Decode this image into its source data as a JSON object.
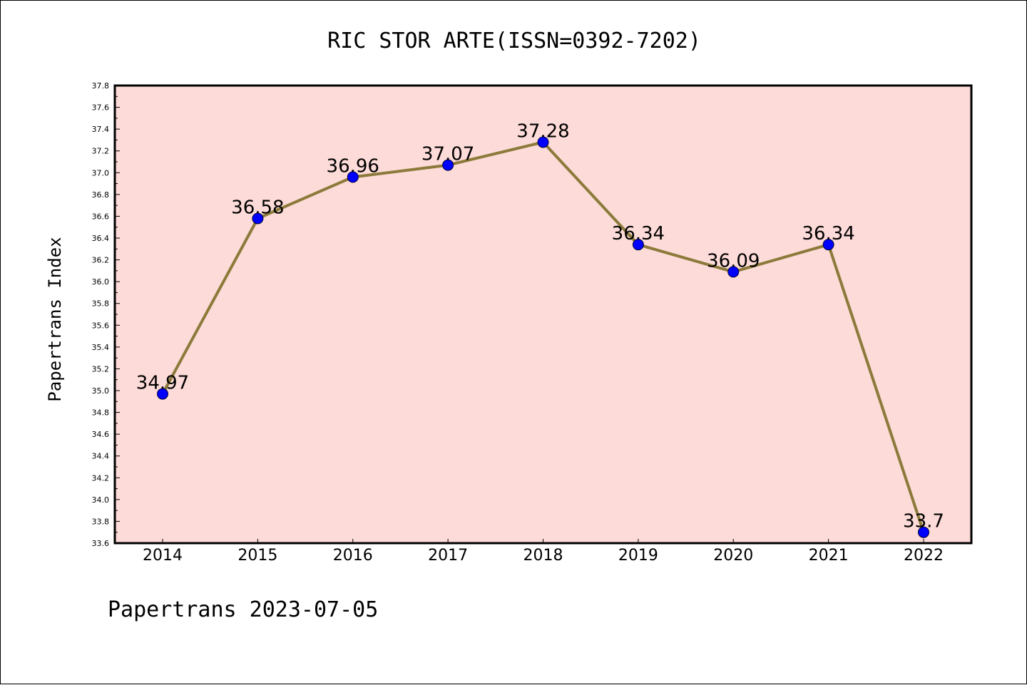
{
  "chart_data": {
    "type": "line",
    "title": "RIC STOR ARTE(ISSN=0392-7202)",
    "xlabel": "",
    "ylabel": "Papertrans Index",
    "categories": [
      "2014",
      "2015",
      "2016",
      "2017",
      "2018",
      "2019",
      "2020",
      "2021",
      "2022"
    ],
    "series": [
      {
        "values": [
          34.97,
          36.58,
          36.96,
          37.07,
          37.28,
          36.34,
          36.09,
          36.34,
          33.7
        ],
        "data_labels": [
          "34.97",
          "36.58",
          "36.96",
          "37.07",
          "37.28",
          "36.34",
          "36.09",
          "36.34",
          "33.7"
        ]
      }
    ],
    "ylim": [
      33.6,
      37.8
    ],
    "yticks": [
      "33.6",
      "33.8",
      "34.0",
      "34.2",
      "34.4",
      "34.6",
      "34.8",
      "35.0",
      "35.2",
      "35.4",
      "35.6",
      "35.8",
      "36.0",
      "36.2",
      "36.4",
      "36.6",
      "36.8",
      "37.0",
      "37.2",
      "37.4",
      "37.6",
      "37.8"
    ],
    "grid": false,
    "legend": "none",
    "colors": {
      "plot_background": "#fddbd8",
      "line": "#8b7a3a",
      "marker": "#0000ff"
    }
  },
  "footer": "Papertrans 2023-07-05"
}
